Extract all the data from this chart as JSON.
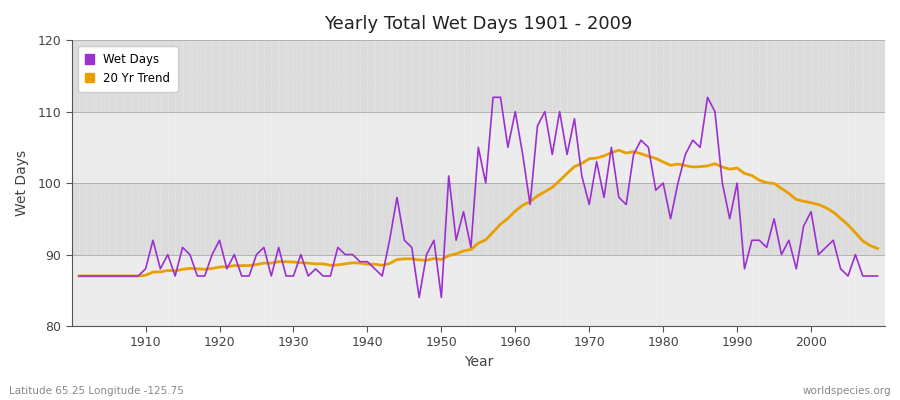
{
  "title": "Yearly Total Wet Days 1901 - 2009",
  "xlabel": "Year",
  "ylabel": "Wet Days",
  "subtitle_left": "Latitude 65.25 Longitude -125.75",
  "subtitle_right": "worldspecies.org",
  "legend_wet": "Wet Days",
  "legend_trend": "20 Yr Trend",
  "wet_color": "#9B30D0",
  "trend_color": "#E8A000",
  "background_color": "#FFFFFF",
  "plot_bg_light": "#EBEBEB",
  "plot_bg_dark": "#DCDCDC",
  "ylim": [
    80,
    120
  ],
  "yticks": [
    80,
    90,
    100,
    110,
    120
  ],
  "xtick_positions": [
    1910,
    1920,
    1930,
    1940,
    1950,
    1960,
    1970,
    1980,
    1990,
    2000
  ],
  "years": [
    1901,
    1902,
    1903,
    1904,
    1905,
    1906,
    1907,
    1908,
    1909,
    1910,
    1911,
    1912,
    1913,
    1914,
    1915,
    1916,
    1917,
    1918,
    1919,
    1920,
    1921,
    1922,
    1923,
    1924,
    1925,
    1926,
    1927,
    1928,
    1929,
    1930,
    1931,
    1932,
    1933,
    1934,
    1935,
    1936,
    1937,
    1938,
    1939,
    1940,
    1941,
    1942,
    1943,
    1944,
    1945,
    1946,
    1947,
    1948,
    1949,
    1950,
    1951,
    1952,
    1953,
    1954,
    1955,
    1956,
    1957,
    1958,
    1959,
    1960,
    1961,
    1962,
    1963,
    1964,
    1965,
    1966,
    1967,
    1968,
    1969,
    1970,
    1971,
    1972,
    1973,
    1974,
    1975,
    1976,
    1977,
    1978,
    1979,
    1980,
    1981,
    1982,
    1983,
    1984,
    1985,
    1986,
    1987,
    1988,
    1989,
    1990,
    1991,
    1992,
    1993,
    1994,
    1995,
    1996,
    1997,
    1998,
    1999,
    2000,
    2001,
    2002,
    2003,
    2004,
    2005,
    2006,
    2007,
    2008,
    2009
  ],
  "wet_days": [
    87,
    87,
    87,
    87,
    87,
    87,
    87,
    87,
    87,
    88,
    92,
    88,
    90,
    87,
    91,
    90,
    87,
    87,
    90,
    92,
    88,
    90,
    87,
    87,
    90,
    91,
    87,
    91,
    87,
    87,
    90,
    87,
    88,
    87,
    87,
    91,
    90,
    90,
    89,
    89,
    88,
    87,
    92,
    98,
    92,
    91,
    84,
    90,
    92,
    84,
    101,
    92,
    96,
    91,
    105,
    100,
    112,
    112,
    105,
    110,
    104,
    97,
    108,
    110,
    104,
    110,
    104,
    109,
    101,
    97,
    103,
    98,
    105,
    98,
    97,
    104,
    106,
    105,
    99,
    100,
    95,
    100,
    104,
    106,
    105,
    112,
    110,
    100,
    95,
    100,
    88,
    92,
    92,
    91,
    95,
    90,
    92,
    88,
    94,
    96,
    90,
    91,
    92,
    88,
    87,
    90,
    87,
    87,
    87
  ]
}
